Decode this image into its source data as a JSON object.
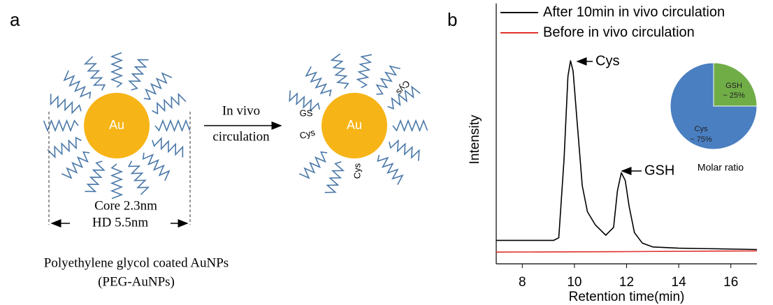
{
  "panel_a": {
    "label": "a",
    "core_text": "Au",
    "right_core_text": "Au",
    "core_size": "Core 2.3nm",
    "hd_size": "HD 5.5nm",
    "arrow_top": "In vivo",
    "arrow_bottom": "circulation",
    "caption_line1": "Polyethylene glycol coated AuNPs",
    "caption_line2": "(PEG-AuNPs)",
    "ligand_labels": [
      "GS",
      "Cys",
      "Cys",
      "Cys"
    ]
  },
  "panel_b_label": "b",
  "chart_data": [
    {
      "type": "line",
      "xlabel": "Retention time(min)",
      "ylabel": "Intensity",
      "xlim": [
        7,
        17
      ],
      "xticks": [
        8,
        10,
        12,
        14,
        16
      ],
      "ylim": [
        0,
        100
      ],
      "series": [
        {
          "name": "After 10min in vivo circulation",
          "color": "#000000",
          "x": [
            7,
            9.2,
            9.4,
            9.6,
            9.75,
            9.85,
            9.95,
            10.1,
            10.3,
            10.5,
            10.8,
            11.2,
            11.5,
            11.65,
            11.8,
            11.95,
            12.1,
            12.3,
            12.6,
            13,
            14,
            17
          ],
          "values": [
            9,
            9,
            10,
            40,
            72,
            78,
            74,
            55,
            30,
            20,
            15,
            11,
            14,
            28,
            35,
            32,
            22,
            12,
            8,
            6.5,
            6,
            5.5
          ]
        },
        {
          "name": "Before in vivo circulation",
          "color": "#e0312e",
          "x": [
            7,
            10,
            12,
            17
          ],
          "values": [
            4.5,
            4.6,
            4.7,
            5
          ]
        }
      ],
      "annotations": [
        "Cys",
        "GSH"
      ]
    },
    {
      "type": "pie",
      "title": "Molar ratio",
      "categories": [
        "GSH",
        "Cys"
      ],
      "values": [
        25,
        75
      ],
      "value_labels": [
        "~ 25%",
        "~ 75%"
      ],
      "colors": [
        "#70ad47",
        "#4a7fc1"
      ]
    }
  ]
}
